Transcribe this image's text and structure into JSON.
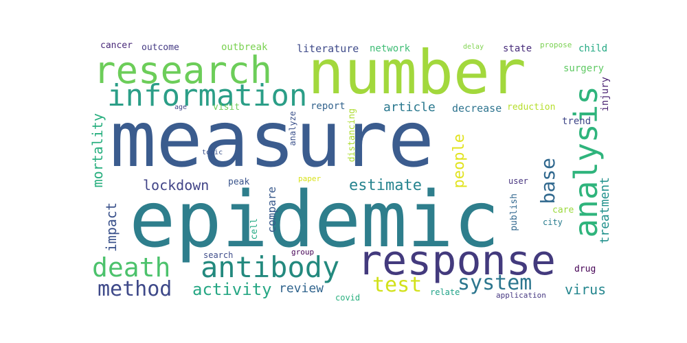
{
  "words": [
    {
      "text": "measure",
      "color": "#3b5c8e"
    },
    {
      "text": "epidemic",
      "color": "#2e7e8c"
    },
    {
      "text": "number",
      "color": "#a2d83c"
    },
    {
      "text": "research",
      "color": "#6ccd59"
    },
    {
      "text": "information",
      "color": "#2b9e87"
    },
    {
      "text": "response",
      "color": "#433a7d"
    },
    {
      "text": "analysis",
      "color": "#2fb47c"
    },
    {
      "text": "antibody",
      "color": "#23897e"
    },
    {
      "text": "death",
      "color": "#4cc26c"
    },
    {
      "text": "system",
      "color": "#2c768e"
    },
    {
      "text": "method",
      "color": "#3e4989"
    },
    {
      "text": "test",
      "color": "#d2e11b"
    },
    {
      "text": "activity",
      "color": "#26a784"
    },
    {
      "text": "estimate",
      "color": "#25838e"
    },
    {
      "text": "lockdown",
      "color": "#414487"
    },
    {
      "text": "base",
      "color": "#30688e"
    },
    {
      "text": "people",
      "color": "#e1e320"
    },
    {
      "text": "mortality",
      "color": "#29af7f"
    },
    {
      "text": "impact",
      "color": "#3b528b"
    },
    {
      "text": "treatment",
      "color": "#21918c"
    },
    {
      "text": "article",
      "color": "#2a788e"
    },
    {
      "text": "review",
      "color": "#32658e"
    },
    {
      "text": "virus",
      "color": "#24868e"
    },
    {
      "text": "compare",
      "color": "#38598c"
    },
    {
      "text": "decrease",
      "color": "#2c738e"
    },
    {
      "text": "reduction",
      "color": "#b5de2b"
    },
    {
      "text": "literature",
      "color": "#3e4a89"
    },
    {
      "text": "outbreak",
      "color": "#7ad151"
    },
    {
      "text": "network",
      "color": "#3dbc74"
    },
    {
      "text": "state",
      "color": "#472c7a"
    },
    {
      "text": "child",
      "color": "#23a983"
    },
    {
      "text": "cancer",
      "color": "#482878"
    },
    {
      "text": "outcome",
      "color": "#443a83"
    },
    {
      "text": "surgery",
      "color": "#5ec962"
    },
    {
      "text": "injury",
      "color": "#481f70"
    },
    {
      "text": "trend",
      "color": "#3f4788"
    },
    {
      "text": "report",
      "color": "#33638d"
    },
    {
      "text": "visit",
      "color": "#6ece58"
    },
    {
      "text": "analyze",
      "color": "#3b518b"
    },
    {
      "text": "distancing",
      "color": "#addc30"
    },
    {
      "text": "peak",
      "color": "#3a548c"
    },
    {
      "text": "paper",
      "color": "#d8e219"
    },
    {
      "text": "user",
      "color": "#46337e"
    },
    {
      "text": "care",
      "color": "#9bd93c"
    },
    {
      "text": "city",
      "color": "#287c8e"
    },
    {
      "text": "publish",
      "color": "#31678e"
    },
    {
      "text": "cell",
      "color": "#24aa83"
    },
    {
      "text": "search",
      "color": "#3e4c8a"
    },
    {
      "text": "group",
      "color": "#440154"
    },
    {
      "text": "drug",
      "color": "#440154"
    },
    {
      "text": "covid",
      "color": "#2ab07f"
    },
    {
      "text": "relate",
      "color": "#1fa287"
    },
    {
      "text": "application",
      "color": "#453781"
    },
    {
      "text": "delay",
      "color": "#7fd34e"
    },
    {
      "text": "propose",
      "color": "#7ad151"
    },
    {
      "text": "age",
      "color": "#404688"
    },
    {
      "text": "topic",
      "color": "#3b528b"
    }
  ]
}
